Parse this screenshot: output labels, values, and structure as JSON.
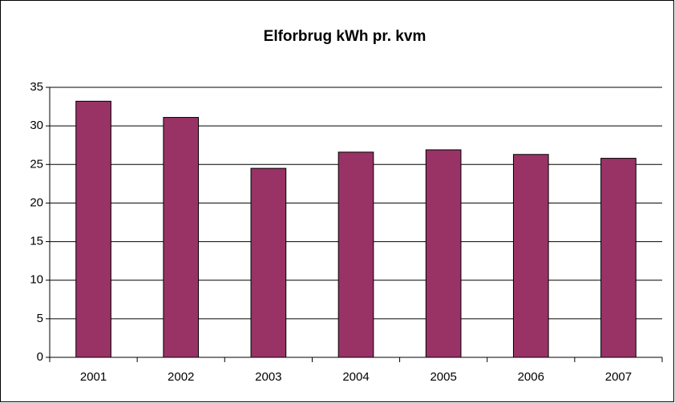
{
  "chart_data": {
    "type": "bar",
    "title": "Elforbrug kWh pr. kvm",
    "categories": [
      "2001",
      "2002",
      "2003",
      "2004",
      "2005",
      "2006",
      "2007"
    ],
    "values": [
      33.2,
      31.1,
      24.5,
      26.6,
      26.9,
      26.3,
      25.8
    ],
    "color": "#993366",
    "ylim": [
      0,
      35
    ],
    "yticks": [
      0,
      5,
      10,
      15,
      20,
      25,
      30,
      35
    ],
    "grid": true
  }
}
